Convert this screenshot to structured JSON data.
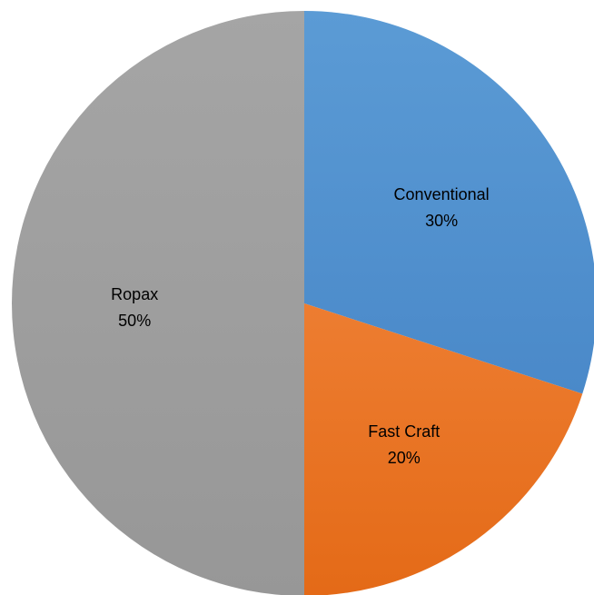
{
  "chart_data": {
    "type": "pie",
    "title": "",
    "start_angle_deg": 0,
    "direction": "clockwise",
    "legend": "none",
    "slices": [
      {
        "label": "Conventional",
        "value": 30,
        "value_label": "30%",
        "color": "#5B9BD5",
        "color_dark": "#4A89C9"
      },
      {
        "label": "Fast Craft",
        "value": 20,
        "value_label": "20%",
        "color": "#ED7D31",
        "color_dark": "#E46A17"
      },
      {
        "label": "Ropax",
        "value": 50,
        "value_label": "50%",
        "color": "#A5A5A5",
        "color_dark": "#979797"
      }
    ]
  }
}
